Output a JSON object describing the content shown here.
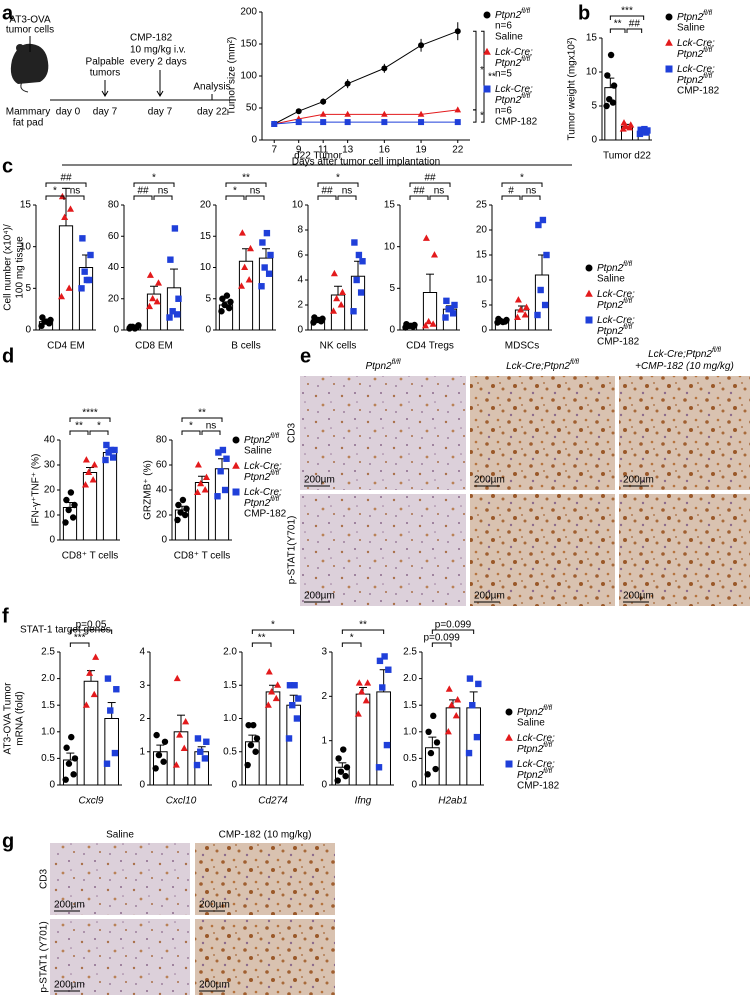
{
  "panel_letters": [
    "a",
    "b",
    "c",
    "d",
    "e",
    "f",
    "g"
  ],
  "groups": [
    {
      "name": [
        [
          "Ptpn2",
          "fl/fl"
        ]
      ],
      "treatment": "Saline",
      "color": "#000000",
      "marker": "circle"
    },
    {
      "name": [
        [
          "Lck-Cre;"
        ],
        [
          "Ptpn2",
          "fl/fl"
        ]
      ],
      "color": "#e31a1c",
      "marker": "triangle"
    },
    {
      "name": [
        [
          "Lck-Cre;"
        ],
        [
          "Ptpn2",
          "fl/fl"
        ]
      ],
      "treatment": "CMP-182",
      "color": "#1f3fd9",
      "marker": "square"
    }
  ],
  "schematic": {
    "cells": [
      "AT3-OVA",
      "tumor cells"
    ],
    "site": [
      "Mammary",
      "fat pad"
    ],
    "palpable": [
      "Palpable",
      "tumors"
    ],
    "treatment": [
      "CMP-182",
      "10 mg/kg i.v.",
      "every 2 days"
    ],
    "analysis": "Analysis",
    "days": [
      "day 0",
      "day 7",
      "day 7",
      "day 22"
    ]
  },
  "c_header": "d22 Tumor",
  "f_header": "STAT-1 target genes",
  "panel_e": {
    "columns": [
      [
        [
          "Ptpn2",
          "fl/fl"
        ]
      ],
      [
        [
          "Lck-Cre;Ptpn2",
          "fl/fl"
        ]
      ],
      [
        [
          "Lck-Cre;Ptpn2",
          "fl/fl"
        ],
        [
          "+CMP-182 (10 mg/kg)"
        ]
      ]
    ],
    "rows": [
      "CD3",
      "p-STAT1(Y701)"
    ],
    "scale": "200µm"
  },
  "panel_g": {
    "columns": [
      "Saline",
      "CMP-182 (10 mg/kg)"
    ],
    "rows": [
      "CD3",
      "p-STAT1 (Y701)"
    ],
    "scale": "200µm"
  },
  "chart_data": [
    {
      "type": "line",
      "ylabel": "Tumor size (mm²)",
      "xlabel": "Days after tumor cell implantation",
      "x": [
        7,
        9,
        11,
        13,
        16,
        19,
        22
      ],
      "xlim": [
        6,
        23
      ],
      "xticks": [
        7,
        9,
        11,
        13,
        16,
        19,
        22
      ],
      "ylim": [
        0,
        200
      ],
      "yticks": [
        0,
        50,
        100,
        150,
        200
      ],
      "n_labels": [
        "n=6",
        "n=5",
        "n=6"
      ],
      "series": [
        {
          "values": [
            25,
            45,
            60,
            88,
            112,
            148,
            170
          ],
          "errors": [
            2,
            4,
            5,
            7,
            7,
            10,
            14
          ]
        },
        {
          "values": [
            25,
            33,
            40,
            40,
            40,
            40,
            47
          ],
          "errors": [
            2,
            3,
            3,
            3,
            3,
            3,
            4
          ]
        },
        {
          "values": [
            25,
            28,
            28,
            28,
            28,
            28,
            28
          ],
          "errors": [
            2,
            2,
            2,
            2,
            2,
            2,
            2
          ]
        }
      ],
      "comparisons": [
        {
          "groups": [
            0,
            1
          ],
          "label": "*"
        },
        {
          "groups": [
            0,
            2
          ],
          "label": "**"
        },
        {
          "groups": [
            1,
            2
          ],
          "label": "*"
        }
      ]
    },
    {
      "type": "bar",
      "ylabel": "Tumor weight (mgx10²)",
      "xlabel": "Tumor d22",
      "ylim": [
        0,
        15
      ],
      "yticks": [
        0,
        5,
        10,
        15
      ],
      "values": [
        7.7,
        2.0,
        1.3
      ],
      "errors": [
        1.4,
        0.3,
        0.2
      ],
      "points": [
        [
          5,
          5.5,
          6,
          8,
          9.5,
          12.5
        ],
        [
          1.6,
          1.8,
          2.0,
          2.2,
          2.5
        ],
        [
          0.9,
          1.1,
          1.3,
          1.4,
          1.5,
          1.6
        ]
      ],
      "comparisons": [
        {
          "groups": [
            0,
            1
          ],
          "label": "**"
        },
        {
          "groups": [
            1,
            2
          ],
          "label": "##"
        },
        {
          "groups": [
            0,
            2
          ],
          "label": "***"
        }
      ]
    },
    {
      "type": "bar",
      "ylabel": [
        "Cell number (x10⁴)/",
        "100 mg tissue"
      ],
      "xlabel": "CD4 EM",
      "ylim": [
        0,
        15
      ],
      "yticks": [
        0,
        5,
        10,
        15
      ],
      "values": [
        1,
        12.5,
        7.5
      ],
      "errors": [
        0.3,
        4.5,
        1.5
      ],
      "points": [
        [
          0.5,
          0.8,
          1,
          1.2,
          1.5,
          1
        ],
        [
          4,
          5,
          13.5,
          14.5,
          16
        ],
        [
          5,
          6,
          7,
          9,
          11,
          6
        ]
      ],
      "comparisons": [
        {
          "groups": [
            0,
            1
          ],
          "label": "*"
        },
        {
          "groups": [
            1,
            2
          ],
          "label": "ns"
        },
        {
          "groups": [
            0,
            2
          ],
          "label": "##"
        }
      ]
    },
    {
      "type": "bar",
      "xlabel": "CD8 EM",
      "ylim": [
        0,
        80
      ],
      "yticks": [
        0,
        20,
        40,
        60,
        80
      ],
      "values": [
        2,
        23,
        27
      ],
      "errors": [
        0.5,
        5,
        12
      ],
      "points": [
        [
          1,
          2,
          2,
          3,
          2,
          1
        ],
        [
          15,
          18,
          20,
          30,
          35
        ],
        [
          8,
          10,
          12,
          20,
          45,
          65
        ]
      ],
      "comparisons": [
        {
          "groups": [
            0,
            1
          ],
          "label": "##"
        },
        {
          "groups": [
            1,
            2
          ],
          "label": "ns"
        },
        {
          "groups": [
            0,
            2
          ],
          "label": "*"
        }
      ]
    },
    {
      "type": "bar",
      "xlabel": "B cells",
      "ylim": [
        0,
        20
      ],
      "yticks": [
        0,
        5,
        10,
        15,
        20
      ],
      "values": [
        4,
        11,
        11.5
      ],
      "errors": [
        0.5,
        2,
        1.5
      ],
      "points": [
        [
          3,
          3.5,
          4,
          4.5,
          5,
          5.5
        ],
        [
          7,
          8,
          10,
          13,
          15.5
        ],
        [
          7,
          9,
          10,
          12,
          14,
          15.5
        ]
      ],
      "comparisons": [
        {
          "groups": [
            0,
            1
          ],
          "label": "*"
        },
        {
          "groups": [
            1,
            2
          ],
          "label": "ns"
        },
        {
          "groups": [
            0,
            2
          ],
          "label": "**"
        }
      ]
    },
    {
      "type": "bar",
      "xlabel": "NK cells",
      "ylim": [
        0,
        10
      ],
      "yticks": [
        0,
        2,
        4,
        6,
        8,
        10
      ],
      "values": [
        0.8,
        2.8,
        4.3
      ],
      "errors": [
        0.1,
        0.7,
        1.2
      ],
      "points": [
        [
          0.6,
          0.7,
          0.8,
          0.9,
          1,
          0.8
        ],
        [
          1.5,
          2,
          2.5,
          3,
          4.5
        ],
        [
          1.5,
          3,
          4,
          5.5,
          7,
          6
        ]
      ],
      "comparisons": [
        {
          "groups": [
            0,
            1
          ],
          "label": "##"
        },
        {
          "groups": [
            1,
            2
          ],
          "label": "ns"
        },
        {
          "groups": [
            0,
            2
          ],
          "label": "*"
        }
      ]
    },
    {
      "type": "bar",
      "xlabel": "CD4 Tregs",
      "ylim": [
        0,
        15
      ],
      "yticks": [
        0,
        5,
        10,
        15
      ],
      "values": [
        0.5,
        4.5,
        2.5
      ],
      "errors": [
        0.1,
        2.2,
        0.4
      ],
      "points": [
        [
          0.3,
          0.4,
          0.5,
          0.6,
          0.7,
          0.5
        ],
        [
          0.5,
          0.7,
          1,
          9,
          11
        ],
        [
          1.5,
          2,
          2.5,
          3,
          3.5,
          2.5
        ]
      ],
      "comparisons": [
        {
          "groups": [
            0,
            1
          ],
          "label": "##"
        },
        {
          "groups": [
            1,
            2
          ],
          "label": "ns"
        },
        {
          "groups": [
            0,
            2
          ],
          "label": "##"
        }
      ]
    },
    {
      "type": "bar",
      "xlabel": "MDSCs",
      "ylim": [
        0,
        25
      ],
      "yticks": [
        0,
        5,
        10,
        15,
        20,
        25
      ],
      "values": [
        1.8,
        4,
        11
      ],
      "errors": [
        0.2,
        0.8,
        4
      ],
      "points": [
        [
          1.5,
          1.7,
          1.8,
          2,
          2.2,
          1.6
        ],
        [
          2.5,
          3,
          4,
          4.5,
          6
        ],
        [
          3,
          5,
          8,
          15,
          21,
          22
        ]
      ],
      "comparisons": [
        {
          "groups": [
            0,
            1
          ],
          "label": "#"
        },
        {
          "groups": [
            1,
            2
          ],
          "label": "ns"
        },
        {
          "groups": [
            0,
            2
          ],
          "label": "*"
        }
      ]
    },
    {
      "type": "bar",
      "ylabel": "IFN-γ⁺TNF⁺ (%)",
      "xlabel": "CD8⁺ T cells",
      "ylim": [
        0,
        40
      ],
      "yticks": [
        0,
        10,
        20,
        30,
        40
      ],
      "values": [
        13,
        27,
        35
      ],
      "errors": [
        2,
        2,
        1
      ],
      "points": [
        [
          7,
          9,
          12,
          14,
          16,
          19
        ],
        [
          22,
          24,
          27,
          30,
          32
        ],
        [
          32,
          33,
          35,
          36,
          38,
          36
        ]
      ],
      "comparisons": [
        {
          "groups": [
            0,
            1
          ],
          "label": "**"
        },
        {
          "groups": [
            1,
            2
          ],
          "label": "*"
        },
        {
          "groups": [
            0,
            2
          ],
          "label": "****"
        }
      ]
    },
    {
      "type": "bar",
      "ylabel": "GRZMB⁺ (%)",
      "xlabel": "CD8⁺ T cells",
      "ylim": [
        0,
        80
      ],
      "yticks": [
        0,
        20,
        40,
        60,
        80
      ],
      "values": [
        24,
        46,
        57
      ],
      "errors": [
        3,
        5,
        8
      ],
      "points": [
        [
          16,
          20,
          22,
          25,
          28,
          32
        ],
        [
          38,
          40,
          45,
          50,
          60
        ],
        [
          35,
          40,
          55,
          65,
          70,
          72
        ]
      ],
      "comparisons": [
        {
          "groups": [
            0,
            1
          ],
          "label": "*"
        },
        {
          "groups": [
            1,
            2
          ],
          "label": "ns"
        },
        {
          "groups": [
            0,
            2
          ],
          "label": "**"
        }
      ]
    },
    {
      "type": "bar",
      "ylabel": [
        "AT3-OVA Tumor",
        "mRNA (fold)"
      ],
      "xlabel": "Cxcl9",
      "ylim": [
        0,
        2.5
      ],
      "yticks": [
        0,
        0.5,
        {
          "value": 1,
          "label": "1.0"
        },
        1.5,
        {
          "value": 2,
          "label": "2.0"
        },
        2.5
      ],
      "values": [
        0.47,
        1.95,
        1.25
      ],
      "errors": [
        0.13,
        0.2,
        0.3
      ],
      "points": [
        [
          0.1,
          0.2,
          0.4,
          0.5,
          0.7,
          0.9
        ],
        [
          1.5,
          1.7,
          2.1,
          2.4
        ],
        [
          0.4,
          0.6,
          1.4,
          1.8,
          2.0
        ]
      ],
      "comparisons": [
        {
          "groups": [
            0,
            1
          ],
          "label": "***"
        },
        {
          "groups": [
            0,
            2
          ],
          "label": "p=0.05"
        }
      ]
    },
    {
      "type": "bar",
      "xlabel": "Cxcl10",
      "ylim": [
        0,
        4
      ],
      "yticks": [
        0,
        1,
        2,
        3,
        4
      ],
      "values": [
        1,
        1.6,
        1
      ],
      "errors": [
        0.2,
        0.5,
        0.15
      ],
      "points": [
        [
          0.5,
          0.7,
          0.9,
          1.3,
          1.5
        ],
        [
          0.6,
          1.1,
          1.5,
          1.9,
          3.2
        ],
        [
          0.6,
          0.8,
          1,
          1.3,
          1.4
        ]
      ],
      "comparisons": []
    },
    {
      "type": "bar",
      "xlabel": "Cd274",
      "ylim": [
        0,
        2
      ],
      "yticks": [
        0,
        0.5,
        {
          "value": 1,
          "label": "1.0"
        },
        1.5,
        {
          "value": 2,
          "label": "2.0"
        }
      ],
      "values": [
        0.65,
        1.4,
        1.2
      ],
      "errors": [
        0.1,
        0.1,
        0.15
      ],
      "points": [
        [
          0.3,
          0.5,
          0.6,
          0.7,
          0.9,
          0.9
        ],
        [
          1.2,
          1.3,
          1.4,
          1.5,
          1.7
        ],
        [
          0.7,
          1,
          1.2,
          1.3,
          1.5,
          1.5
        ]
      ],
      "comparisons": [
        {
          "groups": [
            0,
            1
          ],
          "label": "**"
        },
        {
          "groups": [
            0,
            2
          ],
          "label": "*"
        }
      ]
    },
    {
      "type": "bar",
      "xlabel": "Ifng",
      "ylim": [
        0,
        3
      ],
      "yticks": [
        0,
        1,
        2,
        3
      ],
      "values": [
        0.4,
        2.05,
        2.1
      ],
      "errors": [
        0.1,
        0.15,
        0.5
      ],
      "points": [
        [
          0.1,
          0.2,
          0.3,
          0.4,
          0.6,
          0.8
        ],
        [
          1.6,
          1.9,
          2.1,
          2.3,
          2.3
        ],
        [
          0.4,
          0.9,
          2.2,
          2.6,
          2.8,
          2.9
        ]
      ],
      "comparisons": [
        {
          "groups": [
            0,
            1
          ],
          "label": "*"
        },
        {
          "groups": [
            0,
            2
          ],
          "label": "**"
        }
      ]
    },
    {
      "type": "bar",
      "xlabel": "H2ab1",
      "ylim": [
        0,
        2.5
      ],
      "yticks": [
        0,
        0.5,
        {
          "value": 1,
          "label": "1.0"
        },
        1.5,
        {
          "value": 2,
          "label": "2.0"
        },
        2.5
      ],
      "values": [
        0.7,
        1.45,
        1.45
      ],
      "errors": [
        0.2,
        0.15,
        0.3
      ],
      "points": [
        [
          0.2,
          0.3,
          0.6,
          0.8,
          1.0,
          1.3
        ],
        [
          1,
          1.3,
          1.5,
          1.6,
          1.8
        ],
        [
          0.6,
          0.9,
          1.5,
          1.9,
          2.0
        ]
      ],
      "comparisons": [
        {
          "groups": [
            0,
            1
          ],
          "label": "p=0.099"
        },
        {
          "groups": [
            0,
            2
          ],
          "label": "p=0.099"
        }
      ]
    }
  ]
}
